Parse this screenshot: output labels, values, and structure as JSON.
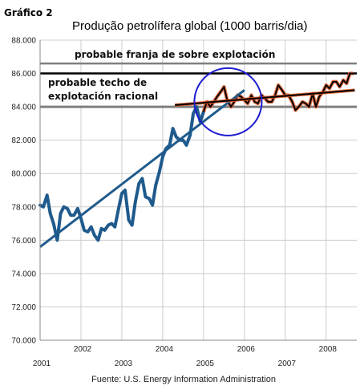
{
  "chart_data": {
    "type": "line",
    "figure_label": "Gráfico 2",
    "title": "Produção petrolífera global  (1000 barris/dia)",
    "source": "Fuente: U.S. Energy Information Administration",
    "ylim": [
      70000,
      88000
    ],
    "yticks": [
      88000,
      86000,
      84000,
      82000,
      80000,
      78000,
      76000,
      74000,
      72000,
      70000
    ],
    "ytick_labels": [
      "88.000",
      "86.000",
      "84.000",
      "82.000",
      "80.000",
      "78.000",
      "76.000",
      "74.000",
      "72.000",
      "70.000"
    ],
    "xlim": [
      2001,
      2008.75
    ],
    "xticks": [
      2001,
      2002,
      2003,
      2004,
      2005,
      2006,
      2007,
      2008
    ],
    "xtick_labels": [
      "2001",
      "2002",
      "2003",
      "2004",
      "2005",
      "2006",
      "2007",
      "2008"
    ],
    "grid": true,
    "colors": {
      "series": "#1f5a8c",
      "trend": "#1f5a8c",
      "upper_line": "#000000",
      "recent_series": "#000000",
      "recent_markers": "#e05a2b",
      "circle": "#1c1cd0",
      "grid": "#cccccc",
      "ref_lines": "#7f7f7f"
    },
    "series": [
      {
        "x": [
          2001.0,
          2001.08,
          2001.17,
          2001.25,
          2001.33,
          2001.42,
          2001.5,
          2001.58,
          2001.67,
          2001.75,
          2001.83,
          2001.92,
          2002.0,
          2002.08,
          2002.17,
          2002.25,
          2002.33,
          2002.42,
          2002.5,
          2002.58,
          2002.67,
          2002.75,
          2002.83,
          2002.92,
          2003.0,
          2003.08,
          2003.17,
          2003.25,
          2003.33,
          2003.42,
          2003.5,
          2003.58,
          2003.67,
          2003.75,
          2003.83,
          2003.92,
          2004.0,
          2004.08,
          2004.17,
          2004.25,
          2004.33,
          2004.42,
          2004.5,
          2004.58,
          2004.67,
          2004.75,
          2004.83,
          2004.92,
          2005.0,
          2005.08,
          2005.17,
          2005.25,
          2005.33,
          2005.42,
          2005.5,
          2005.58,
          2005.67,
          2005.75,
          2005.83,
          2005.92,
          2006.0,
          2006.08,
          2006.17,
          2006.25,
          2006.33,
          2006.42,
          2006.5,
          2006.58,
          2006.67,
          2006.75,
          2006.83,
          2006.92,
          2007.0,
          2007.08,
          2007.17,
          2007.25,
          2007.33,
          2007.42,
          2007.5,
          2007.58,
          2007.67,
          2007.75,
          2007.83,
          2007.92,
          2008.0,
          2008.08,
          2008.17,
          2008.25,
          2008.33,
          2008.42,
          2008.5,
          2008.58,
          2008.67
        ],
        "values": [
          78100,
          78000,
          78700,
          77600,
          77000,
          76000,
          77600,
          78000,
          77900,
          77500,
          77500,
          77900,
          77300,
          76600,
          76500,
          76800,
          76300,
          76000,
          76700,
          76600,
          76900,
          77000,
          76800,
          77900,
          78800,
          79000,
          77200,
          76900,
          78300,
          79400,
          79700,
          78600,
          78500,
          78100,
          79300,
          80100,
          81000,
          81500,
          81700,
          82700,
          82200,
          82000,
          82000,
          81700,
          82300,
          83600,
          84000,
          83100,
          83700,
          84300,
          84000,
          84300,
          84600,
          84900,
          85200,
          84400,
          84000,
          84300,
          84700,
          84600,
          84400,
          84200,
          84700,
          84300,
          84200,
          84700,
          84500,
          84300,
          84300,
          84700,
          85300,
          85000,
          84700,
          84700,
          84300,
          83800,
          84000,
          84300,
          84200,
          84000,
          84800,
          84000,
          84600,
          84900,
          85300,
          85100,
          85500,
          85500,
          85200,
          85600,
          85400,
          86000,
          86000
        ]
      }
    ],
    "trend_line": {
      "x": [
        2001.0,
        2006.0
      ],
      "values": [
        75600,
        85000
      ]
    },
    "recent_trend_line": {
      "x": [
        2004.3,
        2008.7
      ],
      "values": [
        84100,
        85000
      ]
    },
    "reference_lines": [
      {
        "value": 84000,
        "x": [
          2001.0,
          2008.75
        ]
      },
      {
        "value": 86600,
        "x": [
          2001.0,
          2008.75
        ]
      },
      {
        "value": 86000,
        "x": [
          2001.0,
          2008.75
        ]
      }
    ],
    "annotations": [
      {
        "text": "probable franja de sobre explotación"
      },
      {
        "text": "probable techo de"
      },
      {
        "text": "explotación racional"
      }
    ],
    "highlight_circle": {
      "x": 2005.6,
      "value": 84300
    }
  }
}
